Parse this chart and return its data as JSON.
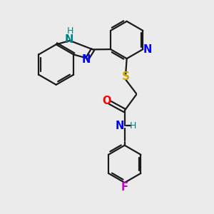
{
  "bg_color": "#ebebeb",
  "bond_color": "#1a1a1a",
  "N_color": "#0000ff",
  "NH_color": "#008080",
  "S_color": "#ccaa00",
  "O_color": "#ff0000",
  "F_color": "#cc00cc",
  "line_width": 1.6,
  "font_size": 10.5,
  "xlim": [
    0,
    10
  ],
  "ylim": [
    0,
    10
  ]
}
